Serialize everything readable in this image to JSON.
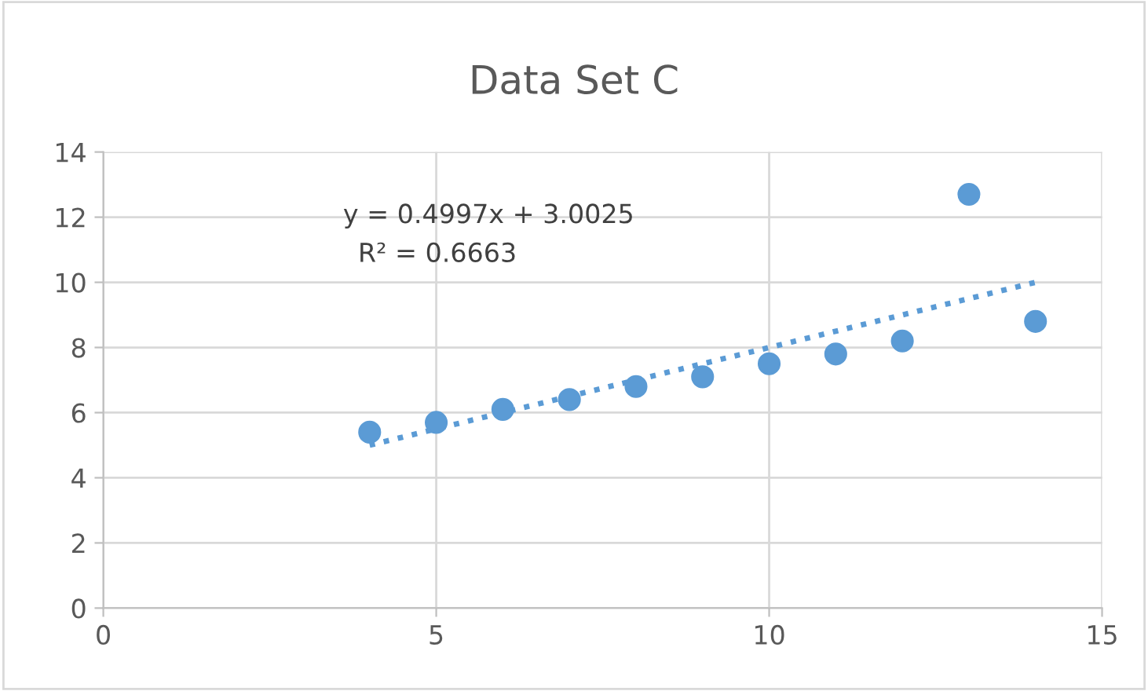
{
  "chart_data": {
    "type": "scatter",
    "title": "Data Set C",
    "series": [
      {
        "color": "#5b9bd5",
        "marker": "circle",
        "x": [
          4,
          5,
          6,
          7,
          8,
          9,
          10,
          11,
          12,
          13,
          14
        ],
        "values": [
          5.4,
          5.7,
          6.1,
          6.4,
          6.8,
          7.1,
          7.5,
          7.8,
          8.2,
          12.7,
          8.8
        ]
      },
      {
        "type": "line",
        "color": "#5b9bd5",
        "line_style": "dotted",
        "marker": "none",
        "x": [
          4,
          14
        ],
        "values": [
          5.0,
          10.0
        ]
      }
    ],
    "annotations": [
      "y = 0.4997x + 3.0025",
      "R² = 0.6663"
    ],
    "xlim": [
      0,
      15
    ],
    "xticks": [
      0,
      5,
      10,
      15
    ],
    "ylim": [
      0,
      14
    ],
    "yticks": [
      0,
      2,
      4,
      6,
      8,
      10,
      12,
      14
    ],
    "grid": true
  }
}
